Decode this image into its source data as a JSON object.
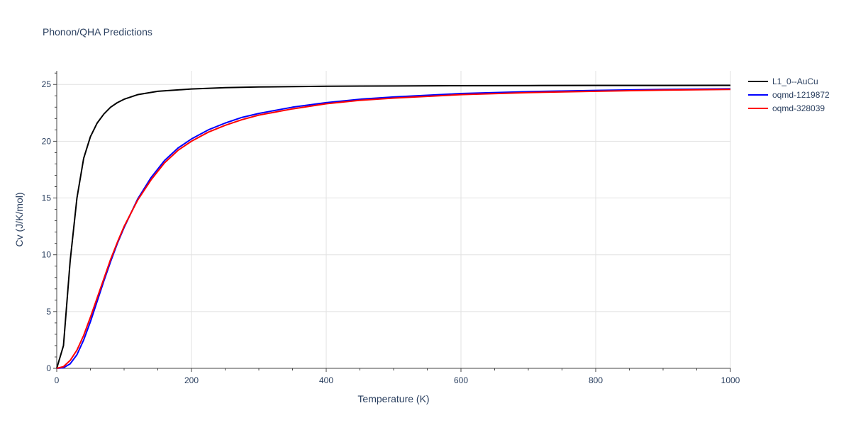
{
  "chart_data": {
    "type": "line",
    "title": "Phonon/QHA Predictions",
    "xlabel": "Temperature (K)",
    "ylabel": "Cv (J/K/mol)",
    "xlim": [
      0,
      1000
    ],
    "ylim": [
      0,
      26.2
    ],
    "x_ticks": [
      0,
      200,
      400,
      600,
      800,
      1000
    ],
    "y_ticks": [
      0,
      5,
      10,
      15,
      20,
      25
    ],
    "grid": true,
    "legend_position": "top-right, outside plot",
    "series": [
      {
        "name": "L1_0--AuCu",
        "color": "#000000",
        "x": [
          0,
          10,
          20,
          30,
          40,
          50,
          60,
          70,
          80,
          90,
          100,
          120,
          150,
          200,
          250,
          300,
          400,
          500,
          600,
          700,
          800,
          900,
          1000
        ],
        "y": [
          0,
          2.0,
          9.5,
          15.0,
          18.5,
          20.4,
          21.6,
          22.4,
          23.0,
          23.4,
          23.7,
          24.1,
          24.4,
          24.6,
          24.72,
          24.78,
          24.84,
          24.87,
          24.89,
          24.9,
          24.91,
          24.91,
          24.92
        ]
      },
      {
        "name": "oqmd-1219872",
        "color": "#0000ff",
        "x": [
          0,
          10,
          20,
          30,
          40,
          50,
          60,
          70,
          80,
          90,
          100,
          120,
          140,
          160,
          180,
          200,
          225,
          250,
          275,
          300,
          350,
          400,
          450,
          500,
          600,
          700,
          800,
          900,
          1000
        ],
        "y": [
          0,
          0.05,
          0.4,
          1.2,
          2.5,
          4.1,
          5.9,
          7.7,
          9.4,
          11.0,
          12.4,
          14.9,
          16.8,
          18.3,
          19.4,
          20.2,
          21.0,
          21.6,
          22.1,
          22.45,
          23.0,
          23.4,
          23.7,
          23.9,
          24.2,
          24.37,
          24.48,
          24.56,
          24.62
        ]
      },
      {
        "name": "oqmd-328039",
        "color": "#ff0000",
        "x": [
          0,
          10,
          20,
          30,
          40,
          50,
          60,
          70,
          80,
          90,
          100,
          120,
          140,
          160,
          180,
          200,
          225,
          250,
          275,
          300,
          350,
          400,
          450,
          500,
          600,
          700,
          800,
          900,
          1000
        ],
        "y": [
          0,
          0.15,
          0.7,
          1.6,
          2.9,
          4.5,
          6.2,
          7.9,
          9.6,
          11.1,
          12.5,
          14.8,
          16.6,
          18.1,
          19.2,
          20.0,
          20.8,
          21.4,
          21.9,
          22.3,
          22.85,
          23.3,
          23.6,
          23.8,
          24.1,
          24.28,
          24.4,
          24.5,
          24.56
        ]
      }
    ]
  }
}
